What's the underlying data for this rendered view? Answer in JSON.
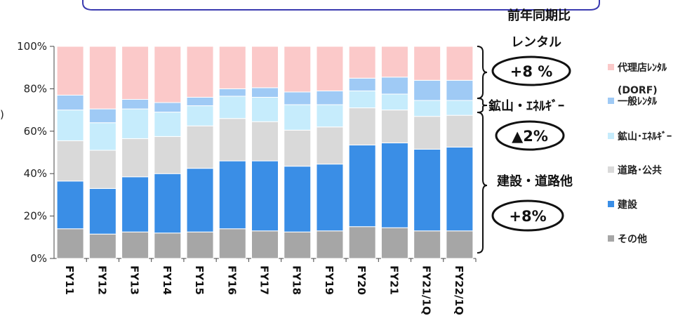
{
  "chart_data": {
    "type": "bar",
    "stacked": true,
    "categories": [
      "FY11",
      "FY12",
      "FY13",
      "FY14",
      "FY15",
      "FY16",
      "FY17",
      "FY18",
      "FY19",
      "FY20",
      "FY21",
      "FY21/1Q",
      "FY22/1Q"
    ],
    "yticks": [
      "0%",
      "20%",
      "40%",
      "60%",
      "80%",
      "100%"
    ],
    "ylim": [
      0,
      100
    ],
    "series": [
      {
        "name": "その他",
        "color": "#a6a6a6",
        "values": [
          14,
          11.5,
          12.5,
          12,
          12.5,
          14,
          13,
          12.5,
          13,
          15,
          14.5,
          13,
          13
        ]
      },
      {
        "name": "建設",
        "color": "#3a8ee6",
        "values": [
          22.5,
          21.5,
          26,
          28,
          30,
          32,
          33,
          31,
          31.5,
          38.5,
          40,
          38.5,
          39.5
        ]
      },
      {
        "name": "道路･公共",
        "color": "#d9d9d9",
        "values": [
          19,
          18,
          18,
          17.5,
          20,
          20,
          18.5,
          17,
          17.5,
          17.5,
          15.5,
          15.5,
          15
        ]
      },
      {
        "name": "鉱山･ｴﾈﾙｷﾞｰ",
        "color": "#c6ecfc",
        "values": [
          14.5,
          13,
          14,
          11.5,
          9.5,
          10.5,
          11.5,
          12,
          10.5,
          8,
          7.5,
          7.5,
          7
        ]
      },
      {
        "name": "一般ﾚﾝﾀﾙ",
        "color": "#9fcaf5",
        "values": [
          7,
          6.5,
          4.5,
          4.5,
          4,
          3.5,
          4.5,
          6,
          6.5,
          6,
          8,
          9.5,
          9.5
        ]
      },
      {
        "name": "代理店ﾚﾝﾀﾙ",
        "color": "#fbc9c9",
        "values": [
          23,
          29.5,
          25,
          26.5,
          24,
          20,
          19.5,
          21.5,
          21,
          15,
          14.5,
          16,
          16
        ]
      }
    ],
    "legend_order": [
      5,
      4,
      3,
      2,
      1,
      0
    ],
    "legend_note": "(DORF)",
    "legend_position": "right",
    "ylabel_fragment": ")",
    "annotations": {
      "title": "前年同期比",
      "groups": [
        {
          "label": "レンタル",
          "value": "+8 %"
        },
        {
          "label": "鉱山・ｴﾈﾙｷﾞｰ",
          "value": "▲2%"
        },
        {
          "label": "建設・道路他",
          "value": "+8%"
        }
      ]
    }
  }
}
